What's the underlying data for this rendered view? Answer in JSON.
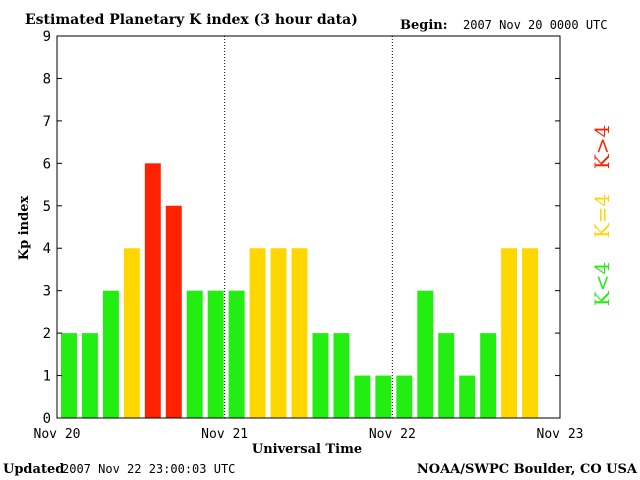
{
  "chart_data": {
    "type": "bar",
    "title": "Estimated Planetary K index (3 hour data)",
    "begin_label": "Begin:",
    "begin_value": "2007 Nov 20 0000 UTC",
    "xlabel": "Universal Time",
    "ylabel": "Kp index",
    "ylim": [
      0,
      9
    ],
    "y_ticks": [
      "0",
      "1",
      "2",
      "3",
      "4",
      "5",
      "6",
      "7",
      "8",
      "9"
    ],
    "x_ticks": [
      "Nov 20",
      "Nov 21",
      "Nov 22",
      "Nov 23"
    ],
    "slots": 24,
    "values": [
      2,
      2,
      3,
      4,
      6,
      5,
      3,
      3,
      3,
      4,
      4,
      4,
      2,
      2,
      1,
      1,
      1,
      3,
      2,
      1,
      2,
      4,
      4
    ],
    "legend": [
      {
        "label": "K<4",
        "color": "#22ee11"
      },
      {
        "label": "K=4",
        "color": "#ffd700"
      },
      {
        "label": "K>4",
        "color": "#ff2200"
      }
    ],
    "grid": false,
    "footer_left_label": "Updated",
    "footer_left_value": "2007 Nov 22 23:00:03 UTC",
    "footer_right": "NOAA/SWPC Boulder, CO USA"
  }
}
